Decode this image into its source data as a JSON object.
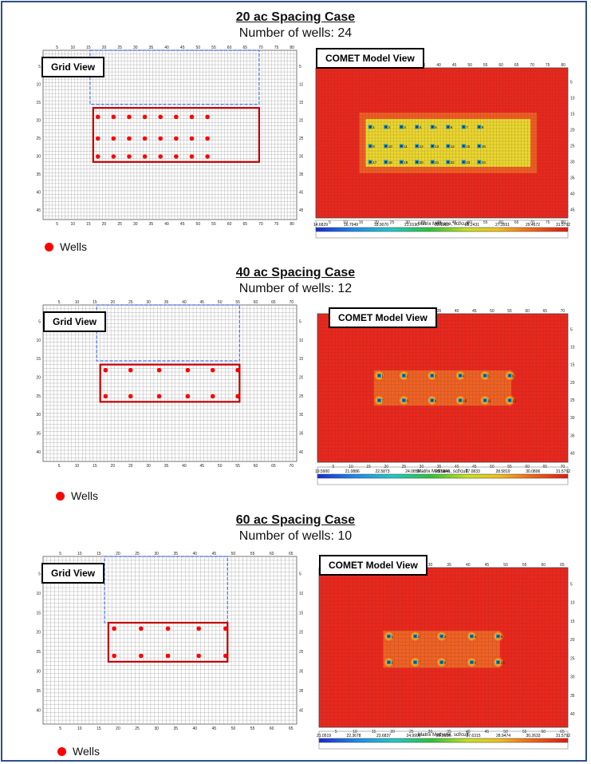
{
  "cases": [
    {
      "title": "20 ac Spacing Case",
      "subtitle": "Number of wells:  24",
      "grid_label": "Grid View",
      "comet_label": "COMET Model View",
      "wells_label": "Wells",
      "grid_x_ticks": [
        "5",
        "10",
        "15",
        "20",
        "25",
        "30",
        "35",
        "40",
        "45",
        "50",
        "55",
        "60",
        "65",
        "70",
        "75",
        "80"
      ],
      "grid_y_ticks": [
        "5",
        "10",
        "15",
        "20",
        "25",
        "30",
        "35",
        "40",
        "45"
      ],
      "comet_x_ticks": [
        "5",
        "10",
        "15",
        "20",
        "25",
        "30",
        "35",
        "40",
        "45",
        "50",
        "55",
        "60",
        "65",
        "70",
        "75",
        "80"
      ],
      "comet_y_ticks": [
        "5",
        "10",
        "15",
        "20",
        "25",
        "30",
        "35",
        "40",
        "45"
      ],
      "colorbar_title": "Matrix Methane, scf/cuft",
      "colorbar_ticks": [
        "14.6829",
        "16.7949",
        "18.9070",
        "21.0190",
        "23.1311",
        "25.2431",
        "27.3551",
        "29.4672",
        "31.5792"
      ],
      "well_labels": [
        "1",
        "2",
        "3",
        "4",
        "5",
        "6",
        "7",
        "8",
        "9",
        "10",
        "11",
        "12",
        "13",
        "14",
        "15",
        "16",
        "17",
        "18",
        "19",
        "20",
        "21",
        "22",
        "23",
        "24"
      ],
      "colors": {
        "well": "#ff0000",
        "pattern": "#c00000",
        "lease": "#4a6ee8",
        "comet_bg": "#e8281e"
      }
    },
    {
      "title": "40 ac Spacing Case",
      "subtitle": "Number of wells:  12",
      "grid_label": "Grid View",
      "comet_label": "COMET Model View",
      "wells_label": "Wells",
      "grid_x_ticks": [
        "5",
        "10",
        "15",
        "20",
        "25",
        "30",
        "35",
        "40",
        "45",
        "50",
        "55",
        "60",
        "65",
        "70"
      ],
      "grid_y_ticks": [
        "5",
        "10",
        "15",
        "20",
        "25",
        "30",
        "35",
        "40"
      ],
      "comet_x_ticks": [
        "5",
        "10",
        "15",
        "20",
        "25",
        "30",
        "35",
        "40",
        "45",
        "50",
        "55",
        "60",
        "65",
        "70"
      ],
      "comet_y_ticks": [
        "5",
        "10",
        "15",
        "20",
        "25",
        "30",
        "35",
        "40"
      ],
      "colorbar_title": "Matrix Methane, scf/cuft",
      "colorbar_ticks": [
        "19.5900",
        "21.0886",
        "22.5873",
        "24.0859",
        "25.5846",
        "27.0833",
        "28.5819",
        "30.0806",
        "31.5792"
      ],
      "well_labels": [
        "1",
        "2",
        "3",
        "4",
        "5",
        "6",
        "7",
        "8",
        "9",
        "10",
        "11",
        "12"
      ],
      "colors": {
        "well": "#ff0000",
        "pattern": "#c00000",
        "lease": "#4a6ee8",
        "comet_bg": "#e8281e"
      }
    },
    {
      "title": "60 ac Spacing Case",
      "subtitle": "Number of wells:  10",
      "grid_label": "Grid View",
      "comet_label": "COMET Model View",
      "wells_label": "Wells",
      "grid_x_ticks": [
        "5",
        "10",
        "15",
        "20",
        "25",
        "30",
        "35",
        "40",
        "45",
        "50",
        "55",
        "60",
        "65"
      ],
      "grid_y_ticks": [
        "5",
        "10",
        "15",
        "20",
        "25",
        "30",
        "35",
        "40"
      ],
      "comet_x_ticks": [
        "5",
        "10",
        "15",
        "20",
        "25",
        "30",
        "35",
        "40",
        "45",
        "50",
        "55",
        "60",
        "65"
      ],
      "comet_y_ticks": [
        "5",
        "10",
        "15",
        "20",
        "25",
        "30",
        "35",
        "40"
      ],
      "colorbar_title": "Matrix Methane, scf/cuft",
      "colorbar_ticks": [
        "21.0519",
        "22.3678",
        "23.6837",
        "24.9996",
        "26.3156",
        "27.6315",
        "28.9474",
        "30.2633",
        "31.5792"
      ],
      "well_labels": [
        "1",
        "2",
        "3",
        "4",
        "5",
        "6",
        "7",
        "8",
        "9",
        "10"
      ],
      "colors": {
        "well": "#ff0000",
        "pattern": "#c00000",
        "lease": "#4a6ee8",
        "comet_bg": "#e8281e"
      }
    }
  ]
}
